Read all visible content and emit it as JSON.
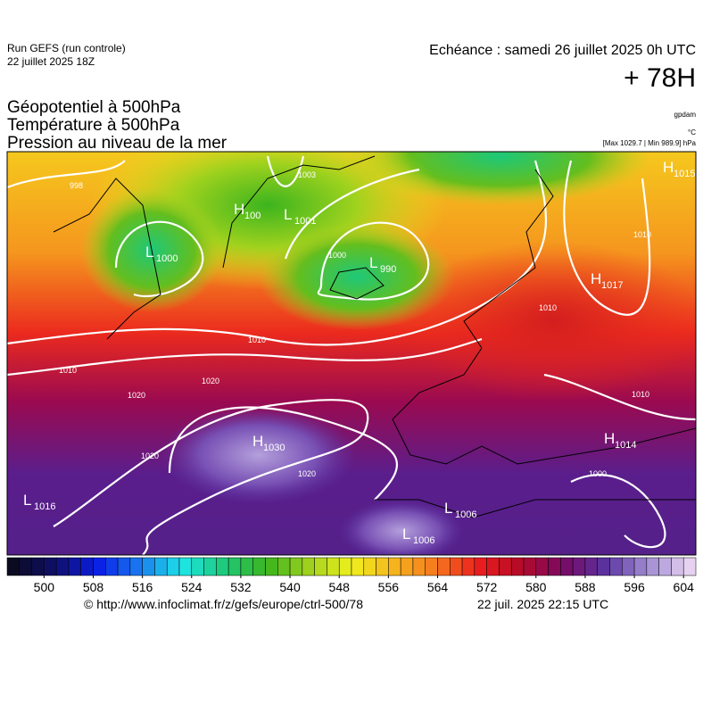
{
  "header": {
    "run": "Run GEFS (run controle)",
    "run_date": "22 juillet 2025 18Z",
    "valid": "Echéance : samedi 26 juillet 2025 0h UTC",
    "lead": "+ 78H"
  },
  "titles": [
    "Géopotentiel à 500hPa",
    "Température à 500hPa",
    "Pression au niveau de la mer"
  ],
  "units": {
    "geopotential": "gpdam",
    "temperature": "°C",
    "pressure": "[Max 1029.7 | Min 989.9] hPa"
  },
  "pressure_centers": [
    {
      "type": "H",
      "value": 1015
    },
    {
      "type": "H",
      "value": 1017
    },
    {
      "type": "H",
      "value": 1030
    },
    {
      "type": "H",
      "value": 1014
    },
    {
      "type": "L",
      "value": 990
    },
    {
      "type": "L",
      "value": 1001
    },
    {
      "type": "L",
      "value": 1000
    },
    {
      "type": "H",
      "value": 100
    },
    {
      "type": "L",
      "value": 1016
    },
    {
      "type": "L",
      "value": 1006
    },
    {
      "type": "L",
      "value": 1006
    }
  ],
  "isobar_labels": [
    998,
    1003,
    1010,
    1010,
    1020,
    1020,
    1020,
    1020,
    1010,
    1010,
    1000,
    1010,
    1000
  ],
  "colorbar": {
    "min": 494,
    "max": 606,
    "step": 2,
    "ticks": [
      500,
      508,
      516,
      524,
      532,
      540,
      548,
      556,
      564,
      572,
      580,
      588,
      596,
      604
    ],
    "palette": [
      "#0a0a20",
      "#10106a",
      "#0a1ee6",
      "#1a7cf0",
      "#1ee6e6",
      "#1ec878",
      "#3cb41e",
      "#a0d21e",
      "#f0f01e",
      "#f5b41e",
      "#f5781e",
      "#eb1e1e",
      "#b40a28",
      "#780a64",
      "#5a32a0",
      "#a08cd2",
      "#e6d2f0"
    ]
  },
  "footer": {
    "source": "© http://www.infoclimat.fr/z/gefs/europe/ctrl-500/78",
    "generated": "22 juil. 2025 22:15 UTC"
  }
}
